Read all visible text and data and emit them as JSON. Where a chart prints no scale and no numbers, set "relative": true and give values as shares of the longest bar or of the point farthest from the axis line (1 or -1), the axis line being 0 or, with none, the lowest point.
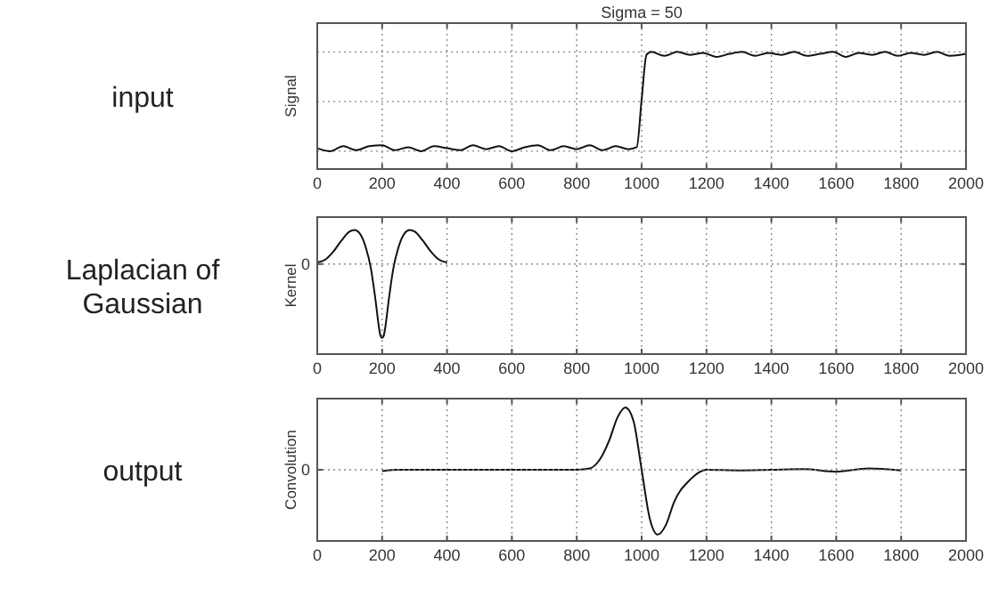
{
  "chart_data": [
    {
      "type": "line",
      "relative": true,
      "title": "Sigma = 50",
      "ylabel": "Signal",
      "annotations": [
        "input"
      ],
      "xlim": [
        0,
        2000
      ],
      "xticks": [
        0,
        200,
        400,
        600,
        800,
        1000,
        1200,
        1400,
        1600,
        1800,
        2000
      ],
      "grid": true,
      "series": [
        {
          "color": "#111111",
          "x": [
            0,
            40,
            80,
            120,
            160,
            200,
            240,
            280,
            320,
            360,
            400,
            440,
            480,
            520,
            560,
            600,
            640,
            680,
            720,
            760,
            800,
            840,
            880,
            920,
            960,
            985,
            1000,
            1015,
            1030,
            1070,
            1110,
            1150,
            1190,
            1230,
            1270,
            1310,
            1350,
            1390,
            1430,
            1470,
            1510,
            1550,
            1590,
            1630,
            1670,
            1710,
            1750,
            1790,
            1830,
            1870,
            1910,
            1950,
            2000
          ],
          "values": [
            0.03,
            0,
            0.05,
            0.01,
            0.05,
            0.06,
            0.01,
            0.04,
            0,
            0.05,
            0.03,
            0.01,
            0.06,
            0.02,
            0.05,
            0,
            0.04,
            0.06,
            0.01,
            0.05,
            0.02,
            0.06,
            0.01,
            0.05,
            0.02,
            0.04,
            0.52,
            0.97,
            1,
            0.96,
            1,
            0.97,
            0.99,
            0.95,
            0.98,
            1,
            0.96,
            0.99,
            0.97,
            1,
            0.96,
            0.98,
            1,
            0.95,
            0.99,
            0.97,
            1,
            0.96,
            0.99,
            0.97,
            1,
            0.96,
            0.98
          ]
        }
      ]
    },
    {
      "type": "line",
      "relative": true,
      "ylabel": "Kernel",
      "annotations": [
        "Laplacian of\nGaussian"
      ],
      "xlim": [
        0,
        2000
      ],
      "xticks": [
        0,
        200,
        400,
        600,
        800,
        1000,
        1200,
        1400,
        1600,
        1800,
        2000
      ],
      "ref_lines": [
        {
          "axis": "y",
          "value": 0,
          "label": "0"
        }
      ],
      "grid": "x",
      "series": [
        {
          "color": "#111111",
          "x": [
            0,
            25,
            50,
            75,
            100,
            115,
            130,
            150,
            165,
            180,
            190,
            195,
            200,
            205,
            210,
            220,
            235,
            250,
            270,
            285,
            300,
            325,
            350,
            375,
            400
          ],
          "values": [
            0.02,
            0.06,
            0.17,
            0.32,
            0.44,
            0.46,
            0.42,
            0.22,
            -0.05,
            -0.5,
            -0.85,
            -0.97,
            -1,
            -0.97,
            -0.85,
            -0.5,
            -0.05,
            0.22,
            0.42,
            0.46,
            0.44,
            0.32,
            0.17,
            0.06,
            0.02
          ]
        }
      ]
    },
    {
      "type": "line",
      "relative": true,
      "ylabel": "Convolution",
      "annotations": [
        "output"
      ],
      "xlim": [
        0,
        2000
      ],
      "xticks": [
        0,
        200,
        400,
        600,
        800,
        1000,
        1200,
        1400,
        1600,
        1800,
        2000
      ],
      "ref_lines": [
        {
          "axis": "y",
          "value": 0,
          "label": "0"
        }
      ],
      "grid": "x",
      "series": [
        {
          "color": "#111111",
          "x": [
            200,
            250,
            800,
            840,
            870,
            900,
            925,
            950,
            975,
            1000,
            1025,
            1050,
            1075,
            1100,
            1150,
            1200,
            1300,
            1400,
            1500,
            1600,
            1700,
            1800
          ],
          "values": [
            -0.02,
            0,
            0,
            0.02,
            0.15,
            0.45,
            0.8,
            0.96,
            0.75,
            0,
            -0.75,
            -1,
            -0.85,
            -0.5,
            -0.15,
            0,
            -0.01,
            0,
            0.01,
            -0.03,
            0.02,
            -0.01
          ]
        }
      ]
    }
  ]
}
